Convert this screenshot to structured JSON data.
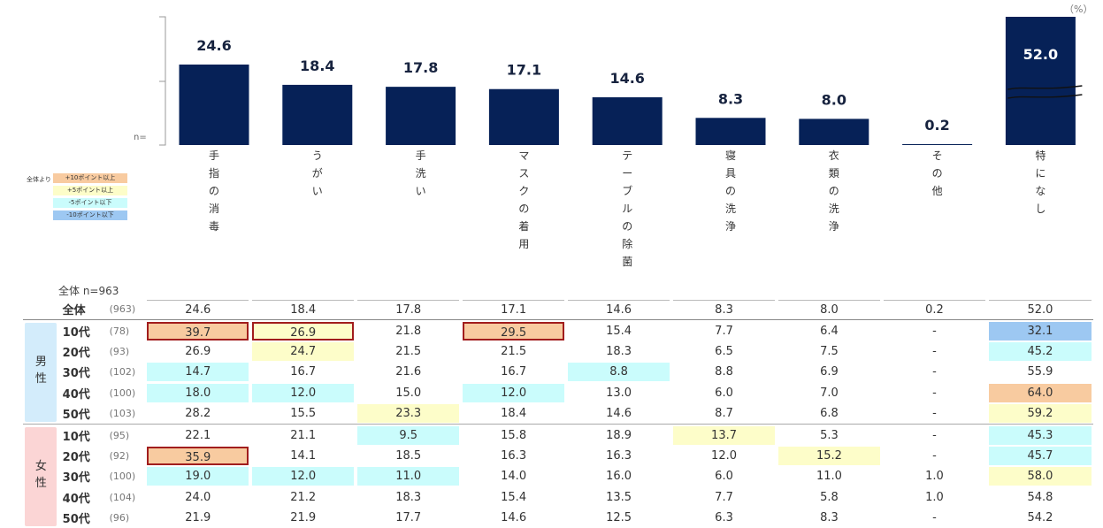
{
  "chart_data": {
    "type": "bar",
    "unit": "（%）",
    "n_label": "n=",
    "categories": [
      "手指の消毒",
      "うがい",
      "手洗い",
      "マスクの着用",
      "テーブルの除菌",
      "寝具の洗浄",
      "衣類の洗浄",
      "その他",
      "特になし"
    ],
    "values": [
      24.6,
      18.4,
      17.8,
      17.1,
      14.6,
      8.3,
      8.0,
      0.2,
      52.0
    ],
    "value_labels": [
      "24.6",
      "18.4",
      "17.8",
      "17.1",
      "14.6",
      "8.3",
      "8.0",
      "0.2",
      "52.0"
    ],
    "axis_break_on": "特になし"
  },
  "legend": {
    "title": "全体より",
    "items": [
      {
        "label": "+10ポイント以上",
        "color": "#f8cba0"
      },
      {
        "label": "+5ポイント以上",
        "color": "#fdfdc9"
      },
      {
        "label": "-5ポイント以下",
        "color": "#cafcfc"
      },
      {
        "label": "-10ポイント以下",
        "color": "#9dc8f2"
      }
    ]
  },
  "table": {
    "title": "全体 n=963",
    "colors": {
      "p10": "#f8cba0",
      "p5": "#fdfdc9",
      "m5": "#cafcfc",
      "m10": "#9dc8f2",
      "highlight_border": "#a11d1d",
      "male_group": "#d3ecfb",
      "female_group": "#fbd5d5"
    },
    "total": {
      "label": "全体",
      "n": "(963)",
      "values": [
        "24.6",
        "18.4",
        "17.8",
        "17.1",
        "14.6",
        "8.3",
        "8.0",
        "0.2",
        "52.0"
      ]
    },
    "groups": [
      {
        "name": "男性",
        "chars": [
          "男",
          "性"
        ],
        "key": "male",
        "rows": [
          {
            "label": "10代",
            "n": "(78)",
            "values": [
              "39.7",
              "26.9",
              "21.8",
              "29.5",
              "15.4",
              "7.7",
              "6.4",
              "-",
              "32.1"
            ],
            "fills": [
              "p10",
              "p5",
              "",
              "p10",
              "",
              "",
              "",
              "",
              "m10"
            ],
            "boxed": [
              0,
              1,
              3
            ]
          },
          {
            "label": "20代",
            "n": "(93)",
            "values": [
              "26.9",
              "24.7",
              "21.5",
              "21.5",
              "18.3",
              "6.5",
              "7.5",
              "-",
              "45.2"
            ],
            "fills": [
              "",
              "p5",
              "",
              "",
              "",
              "",
              "",
              "",
              "m5"
            ],
            "boxed": []
          },
          {
            "label": "30代",
            "n": "(102)",
            "values": [
              "14.7",
              "16.7",
              "21.6",
              "16.7",
              "8.8",
              "8.8",
              "6.9",
              "-",
              "55.9"
            ],
            "fills": [
              "m5",
              "",
              "",
              "",
              "m5",
              "",
              "",
              "",
              ""
            ],
            "boxed": []
          },
          {
            "label": "40代",
            "n": "(100)",
            "values": [
              "18.0",
              "12.0",
              "15.0",
              "12.0",
              "13.0",
              "6.0",
              "7.0",
              "-",
              "64.0"
            ],
            "fills": [
              "m5",
              "m5",
              "",
              "m5",
              "",
              "",
              "",
              "",
              "p10"
            ],
            "boxed": []
          },
          {
            "label": "50代",
            "n": "(103)",
            "values": [
              "28.2",
              "15.5",
              "23.3",
              "18.4",
              "14.6",
              "8.7",
              "6.8",
              "-",
              "59.2"
            ],
            "fills": [
              "",
              "",
              "p5",
              "",
              "",
              "",
              "",
              "",
              "p5"
            ],
            "boxed": []
          }
        ]
      },
      {
        "name": "女性",
        "chars": [
          "女",
          "性"
        ],
        "key": "female",
        "rows": [
          {
            "label": "10代",
            "n": "(95)",
            "values": [
              "22.1",
              "21.1",
              "9.5",
              "15.8",
              "18.9",
              "13.7",
              "5.3",
              "-",
              "45.3"
            ],
            "fills": [
              "",
              "",
              "m5",
              "",
              "",
              "p5",
              "",
              "",
              "m5"
            ],
            "boxed": []
          },
          {
            "label": "20代",
            "n": "(92)",
            "values": [
              "35.9",
              "14.1",
              "18.5",
              "16.3",
              "16.3",
              "12.0",
              "15.2",
              "-",
              "45.7"
            ],
            "fills": [
              "p10",
              "",
              "",
              "",
              "",
              "",
              "p5",
              "",
              "m5"
            ],
            "boxed": [
              0
            ]
          },
          {
            "label": "30代",
            "n": "(100)",
            "values": [
              "19.0",
              "12.0",
              "11.0",
              "14.0",
              "16.0",
              "6.0",
              "11.0",
              "1.0",
              "58.0"
            ],
            "fills": [
              "m5",
              "m5",
              "m5",
              "",
              "",
              "",
              "",
              "",
              "p5"
            ],
            "boxed": []
          },
          {
            "label": "40代",
            "n": "(104)",
            "values": [
              "24.0",
              "21.2",
              "18.3",
              "15.4",
              "13.5",
              "7.7",
              "5.8",
              "1.0",
              "54.8"
            ],
            "fills": [
              "",
              "",
              "",
              "",
              "",
              "",
              "",
              "",
              ""
            ],
            "boxed": []
          },
          {
            "label": "50代",
            "n": "(96)",
            "values": [
              "21.9",
              "21.9",
              "17.7",
              "14.6",
              "12.5",
              "6.3",
              "8.3",
              "-",
              "54.2"
            ],
            "fills": [
              "",
              "",
              "",
              "",
              "",
              "",
              "",
              "",
              ""
            ],
            "boxed": []
          }
        ]
      }
    ]
  }
}
